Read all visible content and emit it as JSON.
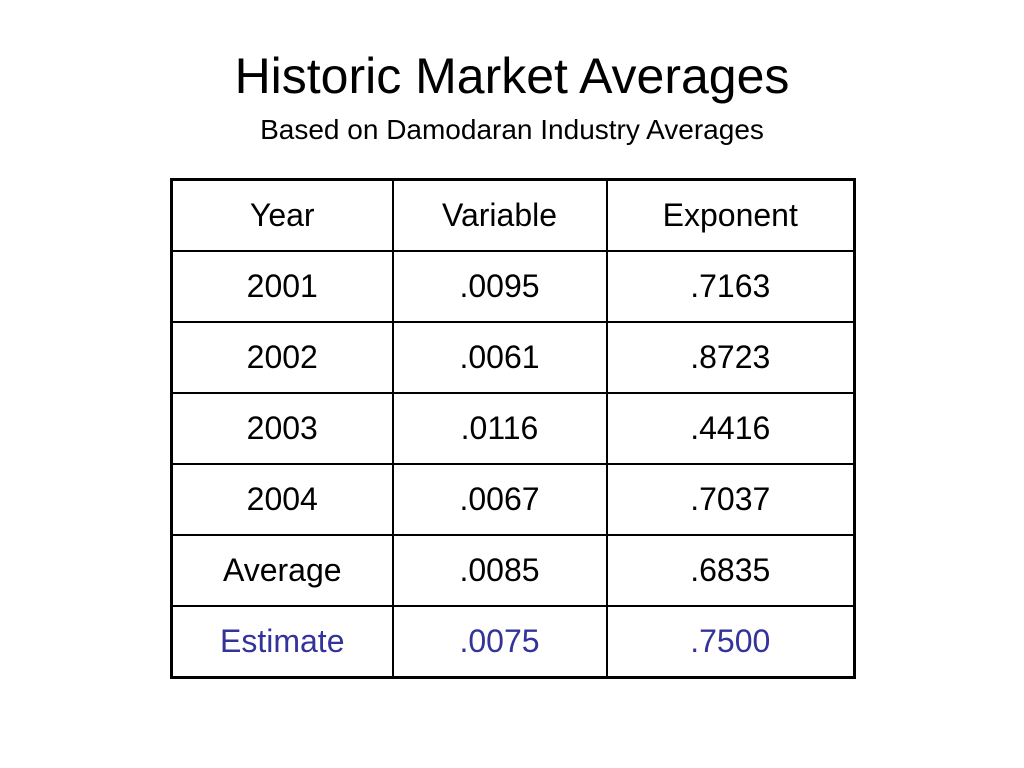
{
  "slide": {
    "title": "Historic Market Averages",
    "subtitle": "Based on Damodaran Industry Averages"
  },
  "table": {
    "headers": [
      "Year",
      "Variable",
      "Exponent"
    ],
    "rows": [
      [
        "2001",
        ".0095",
        ".7163"
      ],
      [
        "2002",
        ".0061",
        ".8723"
      ],
      [
        "2003",
        ".0116",
        ".4416"
      ],
      [
        "2004",
        ".0067",
        ".7037"
      ],
      [
        "Average",
        ".0085",
        ".6835"
      ],
      [
        "Estimate",
        ".0075",
        ".7500"
      ]
    ],
    "highlight_row_color": "#333399"
  }
}
